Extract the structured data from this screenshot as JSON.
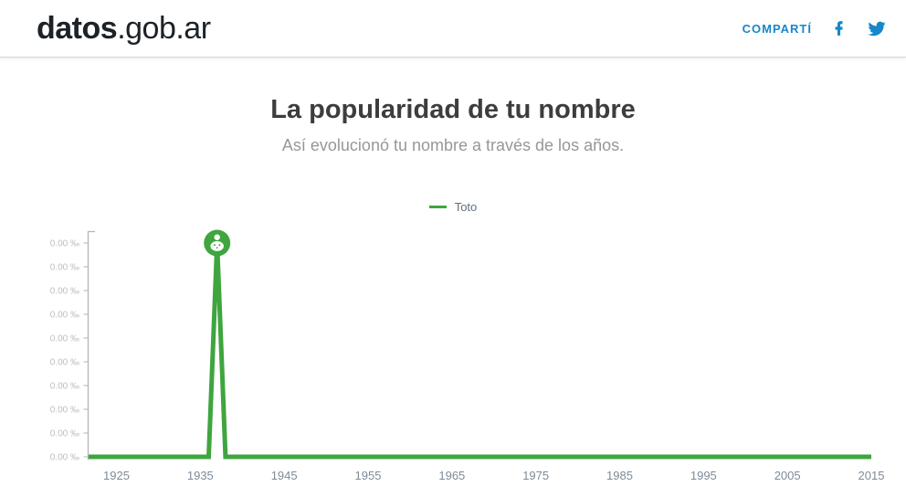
{
  "header": {
    "logo_bold": "datos",
    "logo_rest": ".gob.ar",
    "share_label": "COMPARTÍ",
    "social_icons": [
      "facebook-icon",
      "twitter-icon"
    ]
  },
  "main": {
    "title": "La popularidad de tu nombre",
    "subtitle": "Así evolucionó tu nombre a través de los años."
  },
  "legend": {
    "series_label": "Toto"
  },
  "colors": {
    "green": "#3fa53e",
    "blue": "#1787c9",
    "title": "#3d3d3d",
    "subtitle": "#979797",
    "axis": "#b5b5b5",
    "y_tick_text": "#babfc4",
    "x_tick_text": "#7d8b98",
    "legend_text": "#5f7080",
    "logo": "#1c2227"
  },
  "chart_data": {
    "type": "line",
    "series": [
      {
        "name": "Toto",
        "points": [
          [
            1922,
            0
          ],
          [
            1936,
            0
          ],
          [
            1937,
            0.0045
          ],
          [
            1938,
            0
          ],
          [
            2015,
            0
          ]
        ],
        "marker": {
          "year": 1937,
          "value": 0.0045,
          "icon": "baby-icon"
        }
      }
    ],
    "x_ticks": [
      1925,
      1935,
      1945,
      1955,
      1965,
      1975,
      1985,
      1995,
      2005,
      2015
    ],
    "y_tick_labels": [
      "0.00 ‰",
      "0.00 ‰",
      "0.00 ‰",
      "0.00 ‰",
      "0.00 ‰",
      "0.00 ‰",
      "0.00 ‰",
      "0.00 ‰",
      "0.00 ‰",
      "0.00 ‰"
    ],
    "xlim": [
      1922,
      2015
    ],
    "ylim": [
      0,
      0.0045
    ],
    "y_unit": "‰",
    "grid": false,
    "legend_position": "top-center"
  }
}
